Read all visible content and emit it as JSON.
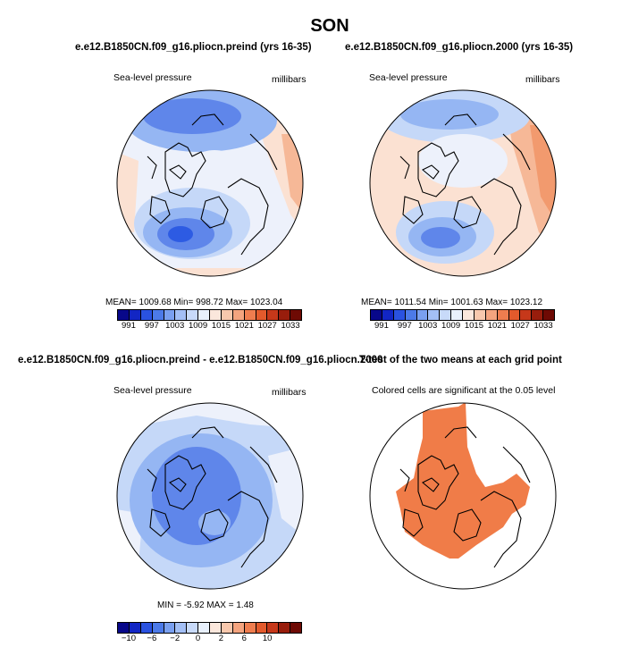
{
  "main_title": "SON",
  "panels": {
    "top_left": {
      "title": "e.e12.B1850CN.f09_g16.pliocn.preind (yrs 16-35)",
      "variable": "Sea-level pressure",
      "units": "millibars",
      "stats": "MEAN= 1009.68   Min= 998.72   Max= 1023.04"
    },
    "top_right": {
      "title": "e.e12.B1850CN.f09_g16.pliocn.2000 (yrs 16-35)",
      "variable": "Sea-level pressure",
      "units": "millibars",
      "stats": "MEAN= 1011.54   Min= 1001.63   Max= 1023.12"
    },
    "bottom_left": {
      "title": "e.e12.B1850CN.f09_g16.pliocn.preind - e.e12.B1850CN.f09_g16.pliocn.2000",
      "variable": "Sea-level pressure",
      "units": "millibars",
      "stats": "MIN =   -5.92  MAX =    1.48"
    },
    "bottom_right": {
      "title": "T-test of the two means at each grid point",
      "variable": "Colored cells are significant at the 0.05 level"
    }
  },
  "colorbars": {
    "slp": {
      "colors": [
        "#08088a",
        "#1226c4",
        "#2a52e0",
        "#4c7ae8",
        "#7aa0f0",
        "#a3bff5",
        "#c8daf9",
        "#e8f0fc",
        "#fbe7dc",
        "#f8c8ad",
        "#f4a47f",
        "#ef7d4f",
        "#e35a2c",
        "#c6381a",
        "#981d0c",
        "#6e0a04"
      ],
      "ticks": [
        "991",
        "997",
        "1003",
        "1009",
        "1015",
        "1021",
        "1027",
        "1033"
      ]
    },
    "diff": {
      "colors": [
        "#08088a",
        "#1226c4",
        "#2a52e0",
        "#4c7ae8",
        "#7aa0f0",
        "#a3bff5",
        "#c8daf9",
        "#e8f0fc",
        "#fbe7dc",
        "#f8c8ad",
        "#f4a47f",
        "#ef7d4f",
        "#e35a2c",
        "#c6381a",
        "#981d0c",
        "#6e0a04"
      ],
      "ticks": [
        "−10",
        "−6",
        "−2",
        "0",
        "2",
        "6",
        "10"
      ]
    }
  },
  "colors": {
    "deep_low": "#2d5be3",
    "low": "#5f86ea",
    "mid_low": "#95b6f3",
    "light_low": "#c5d8f8",
    "neutral": "#edf1fb",
    "warm_light": "#fbe1d2",
    "warm": "#f6b897",
    "warm_mid": "#f29a6e",
    "significant": "#f07c48",
    "coast": "#000000"
  }
}
